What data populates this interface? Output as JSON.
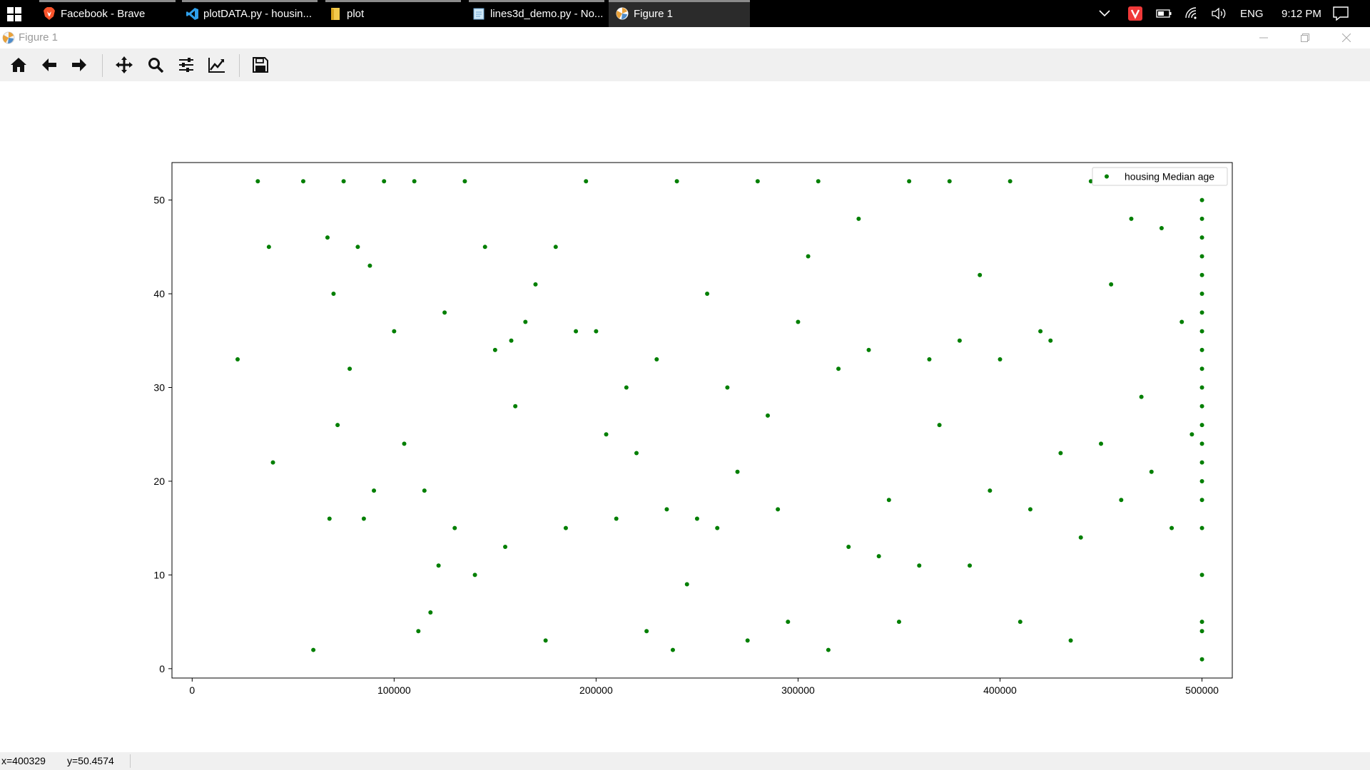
{
  "taskbar": {
    "items": [
      {
        "label": "Facebook - Brave",
        "icon": "brave-icon"
      },
      {
        "label": "plotDATA.py - housin...",
        "icon": "vscode-icon"
      },
      {
        "label": "plot",
        "icon": "folder-icon"
      },
      {
        "label": "lines3d_demo.py - No...",
        "icon": "notepad-icon"
      },
      {
        "label": "Figure 1",
        "icon": "matplotlib-icon"
      }
    ],
    "language": "ENG",
    "time": "9:12 PM"
  },
  "window": {
    "title": "Figure 1"
  },
  "toolbar": {
    "tools": [
      "home-icon",
      "back-arrow-icon",
      "forward-arrow-icon",
      "pan-icon",
      "zoom-icon",
      "subplots-config-icon",
      "edit-axis-icon",
      "save-icon"
    ]
  },
  "status": {
    "x": "x=400329",
    "y": "y=50.4574"
  },
  "colors": {
    "marker": "#007f00",
    "taskbar": "#000000",
    "toolbar": "#f0f0f0"
  },
  "chart_data": {
    "type": "scatter",
    "xlim": [
      -10000,
      515000
    ],
    "ylim": [
      -1,
      54
    ],
    "xticks": [
      0,
      100000,
      200000,
      300000,
      400000,
      500000
    ],
    "xtick_labels": [
      "0",
      "100000",
      "200000",
      "300000",
      "400000",
      "500000"
    ],
    "yticks": [
      0,
      10,
      20,
      30,
      40,
      50
    ],
    "ytick_labels": [
      "0",
      "10",
      "20",
      "30",
      "40",
      "50"
    ],
    "legend": "top-right",
    "grid": false,
    "series": [
      {
        "name": "housing Median age",
        "color": "#007f00",
        "x": [
          22500,
          32500,
          38000,
          40000,
          55000,
          60000,
          67000,
          68000,
          70000,
          72000,
          75000,
          78000,
          82000,
          85000,
          88000,
          90000,
          95000,
          100000,
          105000,
          110000,
          112000,
          115000,
          118000,
          122000,
          125000,
          130000,
          135000,
          140000,
          145000,
          150000,
          155000,
          158000,
          160000,
          165000,
          170000,
          175000,
          180000,
          185000,
          190000,
          195000,
          200000,
          205000,
          210000,
          215000,
          220000,
          225000,
          230000,
          235000,
          238000,
          240000,
          245000,
          250000,
          255000,
          260000,
          265000,
          270000,
          275000,
          280000,
          285000,
          290000,
          295000,
          300000,
          305000,
          310000,
          315000,
          320000,
          325000,
          330000,
          335000,
          340000,
          345000,
          350000,
          355000,
          360000,
          365000,
          370000,
          375000,
          380000,
          385000,
          390000,
          395000,
          400000,
          405000,
          410000,
          415000,
          420000,
          425000,
          430000,
          435000,
          440000,
          445000,
          450000,
          455000,
          460000,
          465000,
          470000,
          475000,
          480000,
          485000,
          490000,
          495000,
          500000,
          500000,
          500000,
          500000,
          500000,
          500000,
          500000,
          500000,
          500000,
          500000,
          500000,
          500000,
          500000,
          500000,
          500000,
          500000,
          500000,
          500000,
          500000,
          500000,
          500000,
          500000,
          500000
        ],
        "y": [
          33,
          52,
          45,
          22,
          52,
          2,
          46,
          16,
          40,
          26,
          52,
          32,
          45,
          16,
          43,
          19,
          52,
          36,
          24,
          52,
          4,
          19,
          6,
          11,
          38,
          15,
          52,
          10,
          45,
          34,
          13,
          35,
          28,
          37,
          41,
          3,
          45,
          15,
          36,
          52,
          36,
          25,
          16,
          30,
          23,
          4,
          33,
          17,
          2,
          52,
          9,
          16,
          40,
          15,
          30,
          21,
          3,
          52,
          27,
          17,
          5,
          37,
          44,
          52,
          2,
          32,
          13,
          48,
          34,
          12,
          18,
          5,
          52,
          11,
          33,
          26,
          52,
          35,
          11,
          42,
          19,
          33,
          52,
          5,
          17,
          36,
          35,
          23,
          3,
          14,
          52,
          24,
          41,
          18,
          48,
          29,
          21,
          47,
          15,
          37,
          25,
          52,
          50,
          48,
          46,
          44,
          42,
          40,
          38,
          36,
          34,
          32,
          30,
          28,
          26,
          24,
          22,
          20,
          18,
          15,
          10,
          5,
          4,
          1
        ]
      }
    ]
  }
}
